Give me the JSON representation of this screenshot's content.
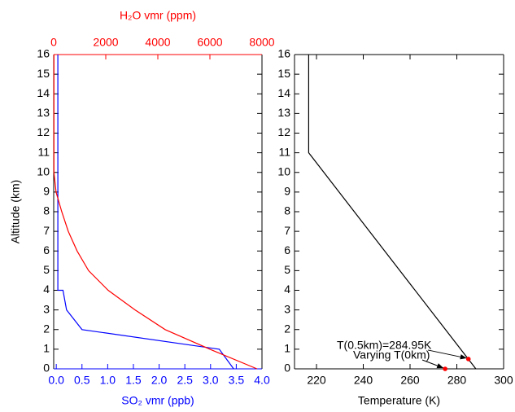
{
  "chart_data": [
    {
      "type": "line",
      "ylabel": "Altitude (km)",
      "xlabel": "SO₂ vmr (ppb)",
      "xlabel_color": "#0000ff",
      "x2label": "H₂O vmr (ppm)",
      "x2label_color": "#ff0000",
      "xlim": [
        -0.05,
        4.0
      ],
      "xticks": [
        {
          "value": 0,
          "label": "0.0"
        },
        {
          "value": 0.5,
          "label": "0.5"
        },
        {
          "value": 1,
          "label": "1.0"
        },
        {
          "value": 1.5,
          "label": "1.5"
        },
        {
          "value": 2,
          "label": "2.0"
        },
        {
          "value": 2.5,
          "label": "2.5"
        },
        {
          "value": 3,
          "label": "3.0"
        },
        {
          "value": 3.5,
          "label": "3.5"
        },
        {
          "value": 4,
          "label": "4.0"
        }
      ],
      "x2lim": [
        0,
        8000
      ],
      "x2ticks": [
        0,
        2000,
        4000,
        6000,
        8000
      ],
      "ylim": [
        0,
        16
      ],
      "yticks": [
        0,
        1,
        2,
        3,
        4,
        5,
        6,
        7,
        8,
        9,
        10,
        11,
        12,
        13,
        14,
        15,
        16
      ],
      "series": [
        {
          "color": "#0000ff",
          "axis": "x",
          "x": [
            3.45,
            3.17,
            0.5,
            0.2,
            0.13,
            0.03,
            0.03
          ],
          "values": [
            0,
            1,
            2,
            3,
            4,
            4,
            16
          ]
        },
        {
          "color": "#ff0000",
          "axis": "x2",
          "x": [
            7810,
            6000,
            4280,
            3125,
            2090,
            1340,
            900,
            560,
            310,
            90,
            10,
            10
          ],
          "values": [
            0,
            1,
            2,
            3,
            4,
            5,
            6,
            7,
            8,
            9,
            10,
            16
          ]
        }
      ]
    },
    {
      "type": "line",
      "xlabel": "Temperature (K)",
      "xlim": [
        210.6,
        300
      ],
      "xticks": [
        220,
        240,
        260,
        280,
        300
      ],
      "ylim": [
        0,
        16
      ],
      "yticks": [
        0,
        1,
        2,
        3,
        4,
        5,
        6,
        7,
        8,
        9,
        10,
        11,
        12,
        13,
        14,
        15,
        16
      ],
      "series": [
        {
          "color": "#000000",
          "axis": "x",
          "x": [
            288.15,
            216.65,
            216.65
          ],
          "values": [
            0,
            11,
            16
          ]
        }
      ],
      "markers": [
        {
          "label": "T(0.5km)=284.95K",
          "x": 284.95,
          "y": 0.5,
          "color": "#ff0000"
        },
        {
          "label": "Varying T(0km)",
          "x": 275,
          "y": 0,
          "color": "#ff0000"
        }
      ]
    }
  ]
}
